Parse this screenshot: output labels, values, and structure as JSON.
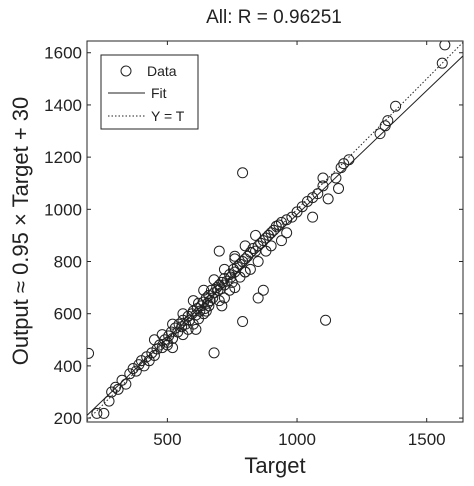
{
  "chart_data": {
    "type": "scatter",
    "title": "All: R = 0.96251",
    "xlabel": "Target",
    "ylabel": "Output ≈ 0.95 × Target + 30",
    "xlim": [
      190,
      1640
    ],
    "ylim": [
      185,
      1645
    ],
    "xticks": [
      500,
      1000,
      1500
    ],
    "yticks": [
      200,
      400,
      600,
      800,
      1000,
      1200,
      1400,
      1600
    ],
    "grid": false,
    "legend_position": "top-left",
    "legend": [
      {
        "label": "Data",
        "marker": "circle"
      },
      {
        "label": "Fit",
        "line": "solid"
      },
      {
        "label": "Y = T",
        "line": "dotted"
      }
    ],
    "fit": {
      "slope": 0.95,
      "intercept": 30
    },
    "identity_line": {
      "slope": 1,
      "intercept": 0
    },
    "series": [
      {
        "name": "Data",
        "points": [
          [
            196,
            448
          ],
          [
            228,
            218
          ],
          [
            255,
            218
          ],
          [
            275,
            265
          ],
          [
            285,
            300
          ],
          [
            300,
            318
          ],
          [
            310,
            310
          ],
          [
            325,
            345
          ],
          [
            340,
            330
          ],
          [
            355,
            370
          ],
          [
            368,
            390
          ],
          [
            380,
            380
          ],
          [
            390,
            405
          ],
          [
            400,
            420
          ],
          [
            410,
            400
          ],
          [
            420,
            435
          ],
          [
            430,
            420
          ],
          [
            440,
            450
          ],
          [
            450,
            440
          ],
          [
            460,
            465
          ],
          [
            470,
            480
          ],
          [
            480,
            470
          ],
          [
            490,
            500
          ],
          [
            500,
            490
          ],
          [
            505,
            515
          ],
          [
            515,
            530
          ],
          [
            520,
            505
          ],
          [
            530,
            545
          ],
          [
            540,
            530
          ],
          [
            545,
            560
          ],
          [
            555,
            550
          ],
          [
            560,
            575
          ],
          [
            570,
            560
          ],
          [
            580,
            590
          ],
          [
            585,
            575
          ],
          [
            595,
            600
          ],
          [
            600,
            610
          ],
          [
            610,
            595
          ],
          [
            615,
            620
          ],
          [
            620,
            640
          ],
          [
            625,
            610
          ],
          [
            630,
            630
          ],
          [
            640,
            645
          ],
          [
            645,
            620
          ],
          [
            650,
            660
          ],
          [
            655,
            640
          ],
          [
            660,
            670
          ],
          [
            665,
            650
          ],
          [
            670,
            690
          ],
          [
            675,
            660
          ],
          [
            680,
            680
          ],
          [
            690,
            700
          ],
          [
            695,
            690
          ],
          [
            700,
            710
          ],
          [
            705,
            695
          ],
          [
            710,
            720
          ],
          [
            720,
            735
          ],
          [
            730,
            725
          ],
          [
            740,
            750
          ],
          [
            745,
            740
          ],
          [
            755,
            770
          ],
          [
            760,
            760
          ],
          [
            770,
            780
          ],
          [
            780,
            790
          ],
          [
            790,
            800
          ],
          [
            800,
            810
          ],
          [
            810,
            820
          ],
          [
            820,
            835
          ],
          [
            830,
            850
          ],
          [
            840,
            840
          ],
          [
            850,
            860
          ],
          [
            860,
            870
          ],
          [
            870,
            880
          ],
          [
            880,
            890
          ],
          [
            890,
            900
          ],
          [
            900,
            910
          ],
          [
            910,
            920
          ],
          [
            920,
            935
          ],
          [
            930,
            940
          ],
          [
            940,
            950
          ],
          [
            960,
            960
          ],
          [
            980,
            970
          ],
          [
            1000,
            990
          ],
          [
            1020,
            1010
          ],
          [
            1040,
            1030
          ],
          [
            1060,
            1045
          ],
          [
            1080,
            1060
          ],
          [
            1100,
            1090
          ],
          [
            1150,
            1120
          ],
          [
            1170,
            1160
          ],
          [
            1180,
            1175
          ],
          [
            1200,
            1190
          ],
          [
            1320,
            1290
          ],
          [
            1340,
            1320
          ],
          [
            1350,
            1340
          ],
          [
            1380,
            1395
          ],
          [
            1560,
            1560
          ],
          [
            1570,
            1630
          ],
          [
            500,
            480
          ],
          [
            520,
            470
          ],
          [
            560,
            520
          ],
          [
            580,
            540
          ],
          [
            600,
            560
          ],
          [
            610,
            540
          ],
          [
            620,
            580
          ],
          [
            640,
            600
          ],
          [
            650,
            610
          ],
          [
            660,
            630
          ],
          [
            700,
            650
          ],
          [
            710,
            630
          ],
          [
            720,
            660
          ],
          [
            740,
            690
          ],
          [
            750,
            720
          ],
          [
            760,
            700
          ],
          [
            780,
            740
          ],
          [
            800,
            760
          ],
          [
            820,
            770
          ],
          [
            850,
            800
          ],
          [
            880,
            840
          ],
          [
            900,
            860
          ],
          [
            450,
            500
          ],
          [
            480,
            520
          ],
          [
            520,
            560
          ],
          [
            560,
            600
          ],
          [
            600,
            650
          ],
          [
            640,
            690
          ],
          [
            680,
            730
          ],
          [
            720,
            770
          ],
          [
            760,
            810
          ],
          [
            800,
            860
          ],
          [
            840,
            900
          ],
          [
            680,
            450
          ],
          [
            700,
            840
          ],
          [
            720,
            710
          ],
          [
            760,
            820
          ],
          [
            790,
            1140
          ],
          [
            790,
            570
          ],
          [
            800,
            760
          ],
          [
            850,
            660
          ],
          [
            870,
            690
          ],
          [
            940,
            880
          ],
          [
            960,
            910
          ],
          [
            1060,
            970
          ],
          [
            1100,
            1120
          ],
          [
            1110,
            575
          ],
          [
            1120,
            1040
          ],
          [
            1160,
            1080
          ]
        ]
      }
    ]
  }
}
